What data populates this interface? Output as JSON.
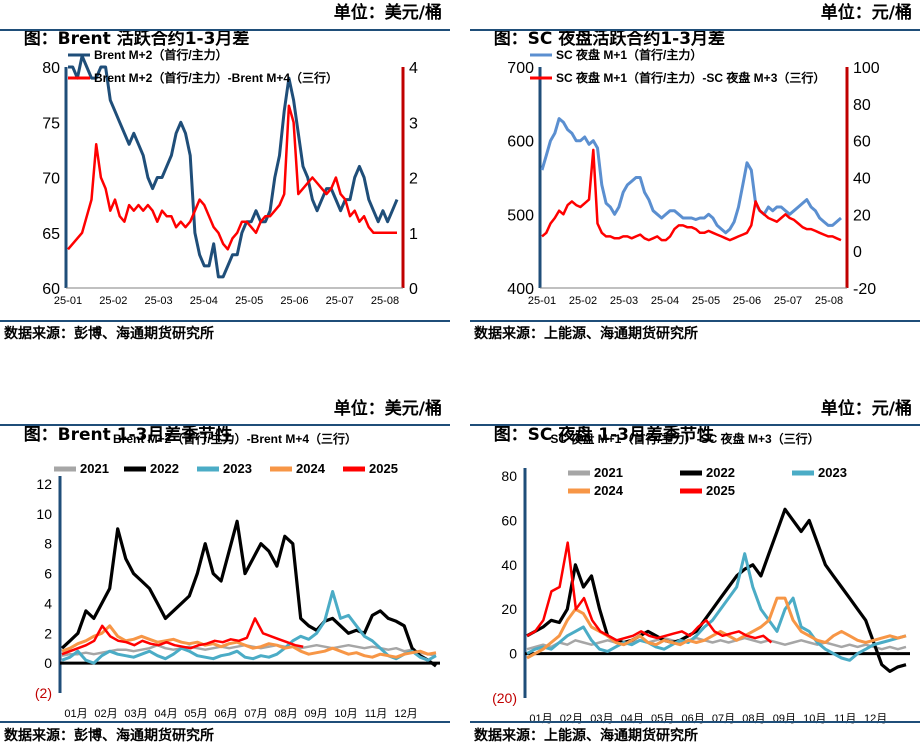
{
  "panels": [
    {
      "title": "图：Brent 活跃合约1-3月差",
      "unit": "单位：美元/桶",
      "source": "数据来源：彭博、海通期货研究所"
    },
    {
      "title": "图：SC 夜盘活跃合约1-3月差",
      "unit": "单位：元/桶",
      "source": "数据来源：上能源、海通期货研究所"
    },
    {
      "title": "图：Brent 1-3月差季节性",
      "unit": "单位：美元/桶",
      "source": "数据来源：彭博、海通期货研究所"
    },
    {
      "title": "图：SC 夜盘 1-3月差季节性",
      "unit": "单位：元/桶",
      "source": "数据来源：上能源、海通期货研究所"
    }
  ],
  "colors": {
    "blue_dark": "#1f4e79",
    "blue_light": "#5b8fd0",
    "red": "#ff0000",
    "axis_red": "#c00000",
    "y2021": "#a6a6a6",
    "y2022": "#000000",
    "y2023": "#4bacc6",
    "y2024": "#f79646",
    "y2025": "#ff0000"
  },
  "chart_data": [
    {
      "type": "line",
      "x_ticks": [
        "25-01",
        "25-02",
        "25-03",
        "25-04",
        "25-05",
        "25-06",
        "25-07",
        "25-08"
      ],
      "left_axis": {
        "ticks": [
          "60",
          "65",
          "70",
          "75",
          "80"
        ],
        "ylim": [
          60,
          80
        ]
      },
      "right_axis": {
        "ticks": [
          "0",
          "1",
          "2",
          "3",
          "4"
        ],
        "ylim": [
          0,
          4
        ]
      },
      "series": [
        {
          "name": "Brent M+2（首行/主力）",
          "axis": "left",
          "values": [
            80,
            80,
            79,
            81,
            80,
            79,
            79,
            80,
            80,
            77,
            76,
            75,
            74,
            73,
            74,
            73,
            72,
            70,
            69,
            70,
            70,
            71,
            72,
            74,
            75,
            74,
            72,
            65,
            63,
            62,
            62,
            64,
            61,
            61,
            62,
            63,
            63,
            65,
            66,
            66,
            67,
            66,
            66,
            67,
            70,
            72,
            76,
            79,
            77,
            74,
            71,
            70,
            68,
            67,
            68,
            69,
            69,
            68,
            67,
            68,
            68,
            70,
            71,
            70,
            68,
            67,
            66,
            67,
            66,
            67,
            68
          ]
        },
        {
          "name": "Brent M+2（首行/主力）-Brent M+4（三行）",
          "axis": "right",
          "values": [
            0.7,
            0.8,
            0.9,
            1.0,
            1.3,
            1.6,
            2.6,
            2.0,
            1.8,
            1.4,
            1.6,
            1.3,
            1.2,
            1.5,
            1.4,
            1.5,
            1.4,
            1.5,
            1.4,
            1.2,
            1.4,
            1.3,
            1.3,
            1.1,
            1.2,
            1.1,
            1.2,
            1.4,
            1.6,
            1.5,
            1.3,
            1.1,
            1.0,
            0.8,
            0.7,
            0.9,
            1.0,
            1.2,
            1.2,
            1.1,
            1.0,
            1.2,
            1.3,
            1.3,
            1.4,
            1.5,
            1.7,
            3.3,
            3.0,
            1.7,
            1.8,
            1.9,
            2.0,
            1.9,
            1.8,
            1.7,
            1.8,
            2.0,
            1.7,
            1.6,
            1.3,
            1.4,
            1.2,
            1.3,
            1.1,
            1.0,
            1.0,
            1.0,
            1.0,
            1.0,
            1.0
          ]
        }
      ]
    },
    {
      "type": "line",
      "x_ticks": [
        "25-01",
        "25-02",
        "25-03",
        "25-04",
        "25-05",
        "25-06",
        "25-07",
        "25-08"
      ],
      "left_axis": {
        "ticks": [
          "400",
          "500",
          "600",
          "700"
        ],
        "ylim": [
          400,
          700
        ]
      },
      "right_axis": {
        "ticks": [
          "-20",
          "0",
          "20",
          "40",
          "60",
          "80",
          "100"
        ],
        "ylim": [
          -20,
          100
        ]
      },
      "series": [
        {
          "name": "SC 夜盘 M+1（首行/主力）",
          "axis": "left",
          "values": [
            560,
            580,
            600,
            610,
            630,
            625,
            615,
            610,
            600,
            600,
            605,
            595,
            600,
            590,
            540,
            515,
            510,
            500,
            510,
            530,
            540,
            545,
            550,
            550,
            530,
            520,
            505,
            500,
            495,
            500,
            505,
            505,
            500,
            495,
            495,
            495,
            493,
            495,
            495,
            500,
            495,
            485,
            480,
            475,
            480,
            490,
            510,
            540,
            570,
            560,
            515,
            505,
            500,
            510,
            505,
            510,
            510,
            505,
            500,
            505,
            510,
            515,
            520,
            510,
            505,
            495,
            490,
            485,
            485,
            490,
            495
          ]
        },
        {
          "name": "SC 夜盘 M+1（首行/主力）-SC 夜盘 M+3（三行）",
          "axis": "right",
          "values": [
            8,
            10,
            15,
            18,
            22,
            20,
            25,
            27,
            25,
            24,
            26,
            28,
            55,
            15,
            10,
            8,
            8,
            7,
            7,
            8,
            8,
            7,
            8,
            9,
            7,
            6,
            7,
            8,
            6,
            6,
            8,
            12,
            14,
            14,
            13,
            13,
            12,
            10,
            10,
            11,
            10,
            9,
            8,
            7,
            6,
            7,
            8,
            9,
            10,
            14,
            27,
            22,
            20,
            18,
            17,
            16,
            18,
            20,
            18,
            17,
            15,
            13,
            12,
            12,
            11,
            10,
            9,
            8,
            8,
            7,
            6
          ]
        }
      ]
    },
    {
      "type": "line",
      "title": "Brent M+2（首行/主力）-Brent M+4（三行）",
      "x_ticks": [
        "01月",
        "02月",
        "03月",
        "04月",
        "05月",
        "06月",
        "07月",
        "08月",
        "09月",
        "10月",
        "11月",
        "12月"
      ],
      "ylim": [
        -2,
        12
      ],
      "y_ticks": [
        "(2)",
        "0",
        "2",
        "4",
        "6",
        "8",
        "10",
        "12"
      ],
      "series": [
        {
          "name": "2021",
          "values": [
            0.5,
            0.6,
            0.6,
            0.7,
            0.6,
            0.7,
            0.8,
            0.9,
            0.9,
            0.8,
            0.9,
            1.0,
            1.2,
            1.0,
            0.9,
            1.0,
            1.1,
            1.0,
            0.9,
            1.0,
            1.1,
            1.0,
            1.1,
            1.2,
            1.1,
            1.0,
            1.1,
            1.2,
            1.1,
            1.1,
            1.0,
            1.1,
            1.2,
            1.1,
            1.0,
            1.1,
            1.2,
            1.1,
            1.0,
            1.1,
            1.0,
            0.9,
            1.0,
            0.8,
            0.9,
            0.7,
            0.6,
            0.5
          ]
        },
        {
          "name": "2022",
          "values": [
            1.0,
            1.5,
            2.0,
            3.5,
            3.0,
            4.0,
            5.0,
            9.0,
            7.0,
            6.0,
            5.5,
            5.0,
            4.0,
            3.0,
            3.5,
            4.0,
            4.5,
            6.0,
            8.0,
            6.0,
            5.5,
            7.5,
            9.5,
            6.0,
            7.0,
            8.0,
            7.5,
            6.5,
            8.5,
            8.0,
            3.0,
            2.5,
            2.2,
            2.8,
            3.0,
            2.5,
            2.0,
            2.2,
            2.0,
            3.2,
            3.5,
            3.0,
            2.8,
            2.5,
            1.0,
            0.5,
            0.2,
            -0.2
          ]
        },
        {
          "name": "2023",
          "values": [
            0.2,
            0.4,
            0.8,
            0.2,
            0.0,
            0.5,
            0.8,
            0.6,
            0.5,
            0.4,
            0.6,
            0.8,
            0.5,
            0.3,
            0.6,
            1.0,
            0.8,
            0.5,
            0.4,
            0.3,
            0.5,
            0.6,
            0.8,
            0.4,
            0.3,
            0.5,
            0.4,
            0.6,
            1.0,
            1.5,
            1.8,
            1.6,
            2.0,
            2.8,
            4.8,
            3.0,
            3.2,
            2.5,
            1.8,
            1.5,
            1.0,
            0.5,
            0.3,
            0.6,
            0.8,
            0.4,
            0.2,
            0.5
          ]
        },
        {
          "name": "2024",
          "values": [
            0.8,
            1.0,
            1.3,
            1.5,
            1.8,
            2.0,
            2.5,
            1.8,
            1.5,
            1.6,
            1.8,
            1.6,
            1.4,
            1.5,
            1.6,
            1.4,
            1.3,
            1.4,
            1.2,
            1.3,
            1.1,
            1.3,
            1.4,
            1.2,
            1.0,
            1.1,
            1.3,
            1.2,
            1.0,
            1.1,
            0.8,
            0.6,
            0.7,
            0.8,
            1.0,
            0.8,
            0.6,
            0.7,
            0.5,
            0.4,
            0.6,
            0.5,
            0.4,
            0.6,
            0.7,
            0.8,
            0.6,
            0.7
          ]
        },
        {
          "name": "2025",
          "values": [
            0.6,
            0.8,
            1.0,
            1.2,
            1.5,
            2.5,
            1.8,
            1.5,
            1.4,
            1.2,
            1.5,
            1.3,
            1.2,
            1.4,
            1.2,
            1.1,
            1.0,
            1.2,
            1.3,
            1.5,
            1.4,
            1.6,
            1.5,
            1.7,
            3.0,
            2.0,
            1.8,
            1.6,
            1.4,
            1.2,
            1.1
          ]
        }
      ]
    },
    {
      "type": "line",
      "title": "SC 夜盘 M+1（首行/主力）-SC 夜盘 M+3（三行）",
      "x_ticks": [
        "01月",
        "02月",
        "03月",
        "04月",
        "05月",
        "06月",
        "07月",
        "08月",
        "09月",
        "10月",
        "11月",
        "12月"
      ],
      "ylim": [
        -20,
        80
      ],
      "y_ticks": [
        "(20)",
        "0",
        "20",
        "40",
        "60",
        "80"
      ],
      "series": [
        {
          "name": "2021",
          "values": [
            2,
            3,
            4,
            3,
            5,
            4,
            6,
            5,
            4,
            5,
            6,
            5,
            4,
            5,
            6,
            5,
            6,
            7,
            6,
            5,
            6,
            7,
            6,
            5,
            6,
            5,
            6,
            7,
            6,
            5,
            6,
            5,
            4,
            5,
            6,
            5,
            4,
            5,
            4,
            3,
            4,
            3,
            4,
            3,
            2,
            3,
            2,
            3
          ]
        },
        {
          "name": "2022",
          "values": [
            8,
            10,
            12,
            15,
            14,
            20,
            40,
            30,
            35,
            20,
            8,
            6,
            5,
            6,
            8,
            10,
            8,
            6,
            5,
            6,
            8,
            10,
            15,
            20,
            25,
            30,
            35,
            38,
            40,
            35,
            45,
            55,
            65,
            60,
            55,
            60,
            50,
            40,
            35,
            30,
            25,
            20,
            15,
            5,
            -5,
            -8,
            -6,
            -5
          ]
        },
        {
          "name": "2023",
          "values": [
            0,
            2,
            3,
            2,
            5,
            8,
            10,
            12,
            6,
            2,
            1,
            3,
            5,
            4,
            6,
            5,
            3,
            2,
            4,
            6,
            5,
            8,
            12,
            15,
            20,
            25,
            30,
            45,
            30,
            20,
            15,
            10,
            20,
            25,
            12,
            10,
            5,
            2,
            0,
            -2,
            -3,
            0,
            2,
            4,
            5,
            6,
            7,
            8
          ]
        },
        {
          "name": "2024",
          "values": [
            -2,
            0,
            2,
            5,
            8,
            15,
            20,
            18,
            12,
            10,
            8,
            5,
            4,
            6,
            8,
            5,
            4,
            6,
            5,
            4,
            6,
            5,
            6,
            8,
            10,
            8,
            6,
            8,
            10,
            12,
            15,
            25,
            25,
            15,
            10,
            8,
            6,
            5,
            8,
            10,
            8,
            6,
            5,
            6,
            7,
            8,
            7,
            8
          ]
        },
        {
          "name": "2025",
          "values": [
            8,
            10,
            15,
            28,
            30,
            50,
            20,
            25,
            15,
            10,
            8,
            6,
            7,
            8,
            10,
            8,
            7,
            8,
            9,
            10,
            8,
            12,
            15,
            10,
            8,
            9,
            10,
            8,
            7,
            8,
            5
          ]
        }
      ]
    }
  ]
}
